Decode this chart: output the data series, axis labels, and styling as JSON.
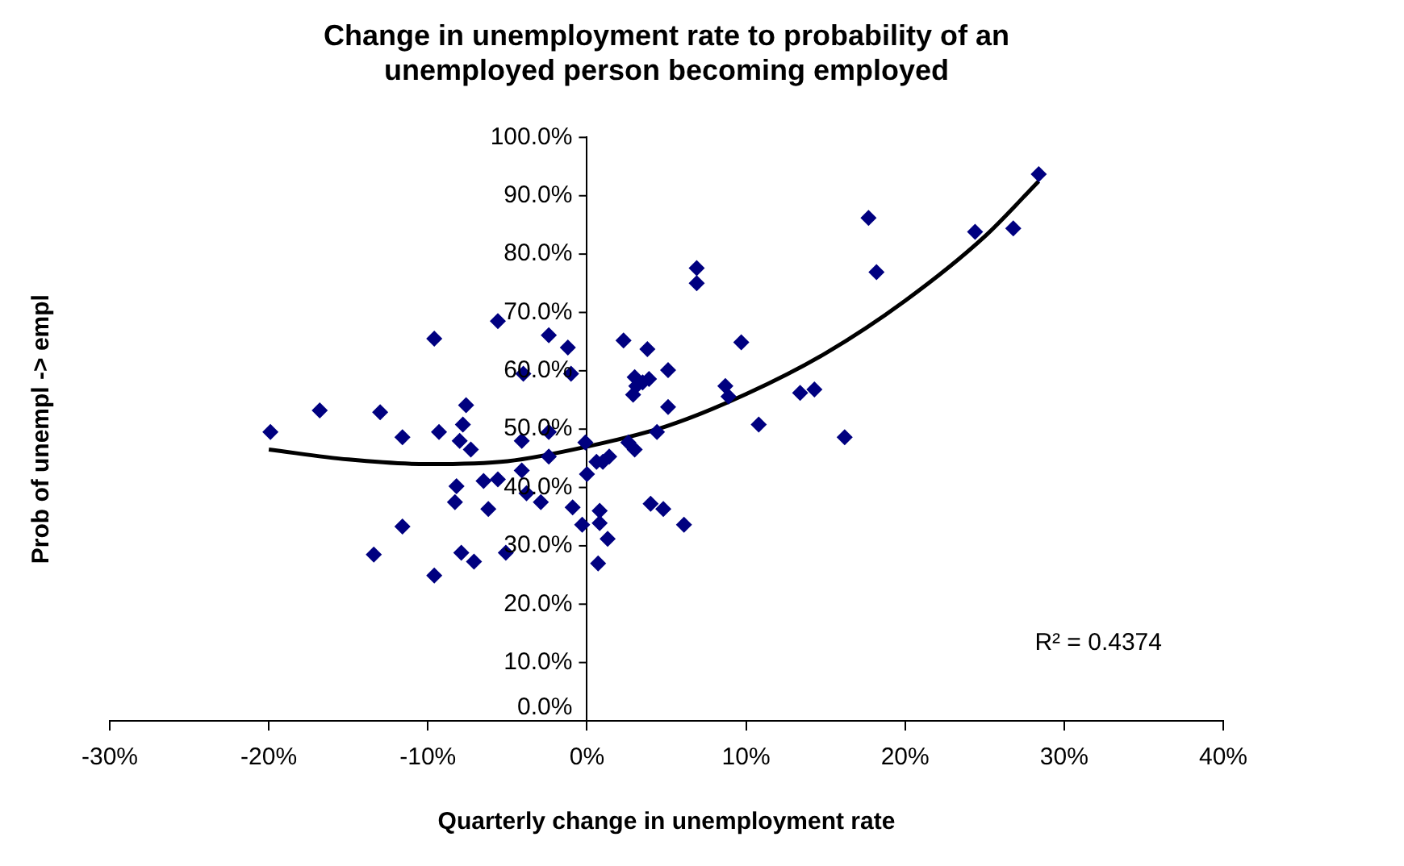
{
  "chart_data": {
    "type": "scatter",
    "title": "Change in unemployment rate to probability of an unemployed person becoming employed",
    "xlabel": "Quarterly change in unemployment rate",
    "ylabel": "Prob of unempl -> empl",
    "annotations": [
      "R² = 0.4374"
    ],
    "xlim": [
      -30,
      40
    ],
    "xticks": [
      {
        "value": -30,
        "label": "-30%"
      },
      {
        "value": -20,
        "label": "-20%"
      },
      {
        "value": -10,
        "label": "-10%"
      },
      {
        "value": 0,
        "label": "0%"
      },
      {
        "value": 10,
        "label": "10%"
      },
      {
        "value": 20,
        "label": "20%"
      },
      {
        "value": 30,
        "label": "30%"
      },
      {
        "value": 40,
        "label": "40%"
      }
    ],
    "ylim": [
      0,
      100
    ],
    "yticks": [
      {
        "value": 0,
        "label": "0.0%"
      },
      {
        "value": 10,
        "label": "10.0%"
      },
      {
        "value": 20,
        "label": "20.0%"
      },
      {
        "value": 30,
        "label": "30.0%"
      },
      {
        "value": 40,
        "label": "40.0%"
      },
      {
        "value": 50,
        "label": "50.0%"
      },
      {
        "value": 60,
        "label": "60.0%"
      },
      {
        "value": 70,
        "label": "70.0%"
      },
      {
        "value": 80,
        "label": "80.0%"
      },
      {
        "value": 90,
        "label": "90.0%"
      },
      {
        "value": 100,
        "label": "100.0%"
      }
    ],
    "grid": false,
    "legend": false,
    "marker": "diamond",
    "series": [
      {
        "color": "#000080",
        "x": [
          -19.9,
          -16.8,
          -13.0,
          -11.6,
          -11.6,
          -13.4,
          -9.6,
          -9.6,
          -9.3,
          -7.6,
          -8.0,
          -7.3,
          -7.8,
          -8.2,
          -8.3,
          -6.2,
          -6.5,
          -7.9,
          -7.1,
          -5.6,
          -5.1,
          -4.1,
          -4.1,
          -3.8,
          -2.9,
          -2.4,
          -2.4,
          -5.6,
          -4.0,
          -2.4,
          -1.2,
          -1.0,
          -0.9,
          -0.3,
          -0.1,
          0.0,
          0.6,
          0.7,
          2.3,
          3.8,
          9.7,
          3.0,
          3.9,
          5.1,
          3.1,
          2.9,
          3.5,
          8.7,
          8.9,
          13.4,
          14.3,
          5.1,
          10.8,
          16.2,
          4.4,
          2.6,
          3.0,
          1.0,
          1.4,
          0.8,
          0.8,
          1.3,
          4.0,
          4.8,
          6.1,
          17.7,
          18.2,
          24.4,
          26.8,
          28.4,
          6.9,
          6.9
        ],
        "values": [
          49.5,
          53.2,
          52.9,
          48.6,
          33.3,
          28.5,
          65.5,
          24.9,
          49.5,
          54.1,
          48.0,
          46.5,
          50.8,
          40.2,
          37.5,
          36.3,
          41.1,
          28.8,
          27.3,
          68.5,
          28.8,
          48.0,
          42.9,
          39.0,
          37.5,
          45.3,
          49.5,
          41.4,
          59.5,
          66.1,
          64.0,
          59.5,
          36.6,
          33.6,
          47.7,
          42.3,
          44.4,
          27.0,
          65.2,
          63.7,
          64.9,
          58.9,
          58.6,
          60.1,
          57.4,
          55.9,
          58.0,
          57.4,
          55.6,
          56.2,
          56.8,
          53.8,
          50.8,
          48.6,
          49.5,
          47.7,
          46.5,
          44.4,
          45.3,
          36.0,
          33.9,
          31.2,
          37.2,
          36.3,
          33.6,
          86.2,
          76.9,
          83.8,
          84.4,
          93.7,
          77.6,
          75.0
        ]
      },
      {
        "type": "line",
        "color": "#000000",
        "marker": "none",
        "line_style": "solid",
        "x": [
          -20,
          -15,
          -10,
          -5,
          0,
          5,
          10,
          15,
          20,
          25,
          28.4
        ],
        "values": [
          46.5,
          44.8,
          44,
          44.5,
          47,
          50.5,
          56,
          63,
          72,
          83,
          92.5
        ]
      }
    ]
  }
}
